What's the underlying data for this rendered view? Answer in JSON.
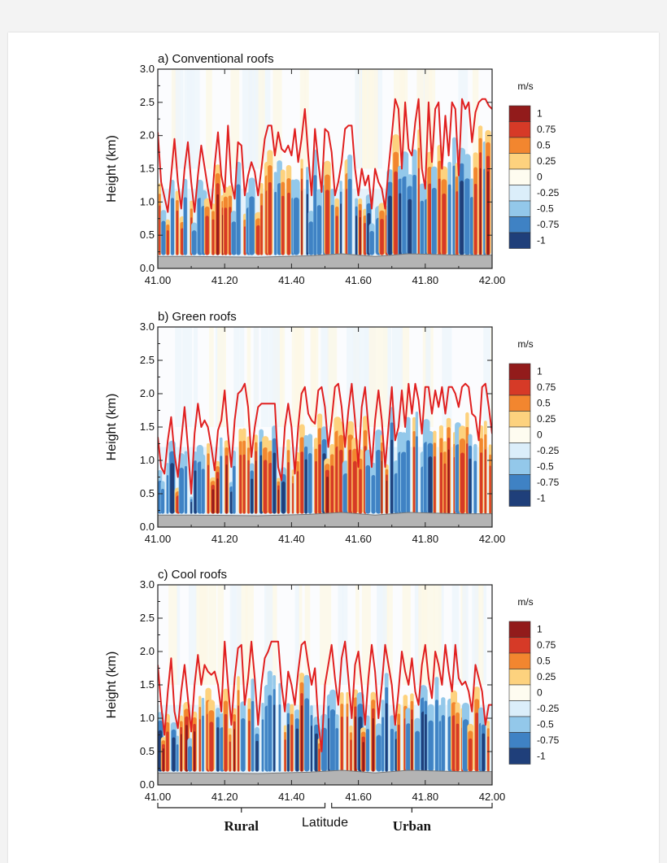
{
  "chart_data": [
    {
      "type": "heatmap",
      "title": "a) Conventional roofs",
      "ylabel": "Height (km)",
      "xlabel": "",
      "xlim": [
        41.0,
        42.0
      ],
      "ylim": [
        0.0,
        3.0
      ],
      "xticks": [
        "41.00",
        "41.20",
        "41.40",
        "41.60",
        "41.80",
        "42.00"
      ],
      "yticks": [
        "0.0",
        "0.5",
        "1.0",
        "1.5",
        "2.0",
        "2.5",
        "3.0"
      ],
      "colorbar": {
        "unit": "m/s",
        "labels": [
          "1",
          "0.75",
          "0.5",
          "0.25",
          "0",
          "-0.25",
          "-0.5",
          "-0.75",
          "-1"
        ]
      },
      "line": {
        "x": [
          41.0,
          41.01,
          41.03,
          41.04,
          41.05,
          41.06,
          41.07,
          41.08,
          41.09,
          41.1,
          41.11,
          41.12,
          41.13,
          41.15,
          41.16,
          41.17,
          41.18,
          41.19,
          41.2,
          41.21,
          41.22,
          41.23,
          41.24,
          41.25,
          41.26,
          41.27,
          41.28,
          41.29,
          41.3,
          41.31,
          41.32,
          41.33,
          41.34,
          41.35,
          41.36,
          41.37,
          41.38,
          41.39,
          41.4,
          41.41,
          41.42,
          41.43,
          41.44,
          41.45,
          41.46,
          41.47,
          41.48,
          41.49,
          41.5,
          41.51,
          41.52,
          41.53,
          41.54,
          41.55,
          41.56,
          41.57,
          41.58,
          41.59,
          41.6,
          41.61,
          41.62,
          41.63,
          41.64,
          41.65,
          41.66,
          41.67,
          41.68,
          41.69,
          41.7,
          41.71,
          41.72,
          41.73,
          41.74,
          41.75,
          41.76,
          41.77,
          41.78,
          41.79,
          41.8,
          41.81,
          41.82,
          41.83,
          41.84,
          41.85,
          41.86,
          41.87,
          41.88,
          41.89,
          41.9,
          41.91,
          41.92,
          41.93,
          41.94,
          41.95,
          41.96,
          41.97,
          41.98,
          41.99,
          42.0
        ],
        "y": [
          2.05,
          1.3,
          0.85,
          1.4,
          1.95,
          1.3,
          0.9,
          1.5,
          1.9,
          1.3,
          0.85,
          1.4,
          1.85,
          1.2,
          0.9,
          1.55,
          2.05,
          1.4,
          1.15,
          2.15,
          1.3,
          1.05,
          1.9,
          1.85,
          1.1,
          1.4,
          1.6,
          1.45,
          1.1,
          1.5,
          1.95,
          2.15,
          2.15,
          1.7,
          2.05,
          1.8,
          1.75,
          1.85,
          1.7,
          2.1,
          1.6,
          1.95,
          2.4,
          1.7,
          1.1,
          2.1,
          1.6,
          1.15,
          2.1,
          2.05,
          1.75,
          1.1,
          1.3,
          1.6,
          2.1,
          2.15,
          2.15,
          1.5,
          1.1,
          1.5,
          1.25,
          1.4,
          0.9,
          1.5,
          1.3,
          1.2,
          0.9,
          1.5,
          2.0,
          2.55,
          2.4,
          1.5,
          2.5,
          1.8,
          1.7,
          2.2,
          2.55,
          1.5,
          1.2,
          2.5,
          1.6,
          2.4,
          2.5,
          1.5,
          2.3,
          1.7,
          2.5,
          2.4,
          1.4,
          2.55,
          2.4,
          2.5,
          1.9,
          2.35,
          2.5,
          2.55,
          2.55,
          2.45,
          2.4
        ]
      }
    },
    {
      "type": "heatmap",
      "title": "b) Green roofs",
      "ylabel": "Height (km)",
      "xlabel": "",
      "xlim": [
        41.0,
        42.0
      ],
      "ylim": [
        0.0,
        3.0
      ],
      "xticks": [
        "41.00",
        "41.20",
        "41.40",
        "41.60",
        "41.80",
        "42.00"
      ],
      "yticks": [
        "0.0",
        "0.5",
        "1.0",
        "1.5",
        "2.0",
        "2.5",
        "3.0"
      ],
      "colorbar": {
        "unit": "m/s",
        "labels": [
          "1",
          "0.75",
          "0.5",
          "0.25",
          "0",
          "-0.25",
          "-0.5",
          "-0.75",
          "-1"
        ]
      },
      "line": {
        "x": [
          41.0,
          41.01,
          41.02,
          41.03,
          41.04,
          41.05,
          41.06,
          41.07,
          41.08,
          41.09,
          41.1,
          41.11,
          41.12,
          41.13,
          41.14,
          41.15,
          41.16,
          41.17,
          41.18,
          41.19,
          41.2,
          41.21,
          41.22,
          41.23,
          41.24,
          41.25,
          41.26,
          41.27,
          41.28,
          41.29,
          41.3,
          41.31,
          41.32,
          41.33,
          41.34,
          41.35,
          41.36,
          41.37,
          41.38,
          41.39,
          41.4,
          41.41,
          41.42,
          41.43,
          41.44,
          41.45,
          41.46,
          41.47,
          41.48,
          41.49,
          41.5,
          41.51,
          41.52,
          41.53,
          41.54,
          41.55,
          41.56,
          41.57,
          41.58,
          41.59,
          41.6,
          41.61,
          41.62,
          41.63,
          41.64,
          41.65,
          41.66,
          41.67,
          41.68,
          41.69,
          41.7,
          41.71,
          41.72,
          41.73,
          41.74,
          41.75,
          41.76,
          41.77,
          41.78,
          41.79,
          41.8,
          41.81,
          41.82,
          41.83,
          41.84,
          41.85,
          41.86,
          41.87,
          41.88,
          41.89,
          41.9,
          41.91,
          41.92,
          41.93,
          41.94,
          41.95,
          41.96,
          41.97,
          41.98,
          41.99,
          42.0
        ],
        "y": [
          1.35,
          0.9,
          0.8,
          1.3,
          1.65,
          1.1,
          0.75,
          1.3,
          1.8,
          1.2,
          0.5,
          1.4,
          1.85,
          1.5,
          1.6,
          1.5,
          1.2,
          0.85,
          1.45,
          1.6,
          2.05,
          1.4,
          0.9,
          1.6,
          2.0,
          2.05,
          2.15,
          1.8,
          1.05,
          1.5,
          1.8,
          1.85,
          1.85,
          1.85,
          1.85,
          1.85,
          0.9,
          0.7,
          1.5,
          1.85,
          1.5,
          0.8,
          1.5,
          2.0,
          2.1,
          1.7,
          1.6,
          1.55,
          2.05,
          2.1,
          1.8,
          1.2,
          1.6,
          2.1,
          2.15,
          1.8,
          1.2,
          1.75,
          2.15,
          1.6,
          0.9,
          1.8,
          2.1,
          1.5,
          0.9,
          1.6,
          2.05,
          1.6,
          0.9,
          1.5,
          2.1,
          1.3,
          1.5,
          2.05,
          1.5,
          2.15,
          1.7,
          2.15,
          1.9,
          1.4,
          2.1,
          2.1,
          1.7,
          2.05,
          1.8,
          2.1,
          1.7,
          2.1,
          2.1,
          2.0,
          1.8,
          2.1,
          2.15,
          2.1,
          1.7,
          1.65,
          1.3,
          2.1,
          2.15,
          1.8,
          1.4
        ]
      }
    },
    {
      "type": "heatmap",
      "title": "c) Cool roofs",
      "ylabel": "Height (km)",
      "xlabel": "Latitude",
      "xlim": [
        41.0,
        42.0
      ],
      "ylim": [
        0.0,
        3.0
      ],
      "xticks": [
        "41.00",
        "41.20",
        "41.40",
        "41.60",
        "41.80",
        "42.00"
      ],
      "yticks": [
        "0.0",
        "0.5",
        "1.0",
        "1.5",
        "2.0",
        "2.5",
        "3.0"
      ],
      "colorbar": {
        "unit": "m/s",
        "labels": [
          "1",
          "0.75",
          "0.5",
          "0.25",
          "0",
          "-0.25",
          "-0.5",
          "-0.75",
          "-1"
        ]
      },
      "regions": [
        {
          "label": "Rural",
          "from": 41.0,
          "to": 41.5
        },
        {
          "label": "Urban",
          "from": 41.52,
          "to": 42.0
        }
      ],
      "line": {
        "x": [
          41.0,
          41.01,
          41.02,
          41.03,
          41.04,
          41.05,
          41.06,
          41.07,
          41.08,
          41.09,
          41.1,
          41.11,
          41.12,
          41.13,
          41.14,
          41.15,
          41.16,
          41.17,
          41.18,
          41.19,
          41.2,
          41.21,
          41.22,
          41.23,
          41.24,
          41.25,
          41.26,
          41.27,
          41.28,
          41.29,
          41.3,
          41.31,
          41.32,
          41.33,
          41.34,
          41.35,
          41.36,
          41.37,
          41.38,
          41.39,
          41.4,
          41.41,
          41.42,
          41.43,
          41.44,
          41.45,
          41.46,
          41.47,
          41.48,
          41.49,
          41.5,
          41.51,
          41.52,
          41.53,
          41.54,
          41.55,
          41.56,
          41.57,
          41.58,
          41.59,
          41.6,
          41.61,
          41.62,
          41.63,
          41.64,
          41.65,
          41.66,
          41.67,
          41.68,
          41.69,
          41.7,
          41.71,
          41.72,
          41.73,
          41.74,
          41.75,
          41.76,
          41.77,
          41.78,
          41.79,
          41.8,
          41.81,
          41.82,
          41.83,
          41.84,
          41.85,
          41.86,
          41.87,
          41.88,
          41.89,
          41.9,
          41.91,
          41.92,
          41.93,
          41.94,
          41.95,
          41.96,
          41.97,
          41.98,
          41.99,
          42.0
        ],
        "y": [
          1.8,
          1.2,
          0.75,
          1.4,
          1.9,
          1.1,
          0.85,
          1.4,
          1.8,
          1.3,
          0.8,
          1.5,
          1.95,
          1.5,
          1.8,
          1.7,
          1.65,
          1.7,
          1.5,
          1.1,
          2.15,
          1.5,
          0.9,
          1.6,
          2.05,
          2.1,
          1.2,
          1.6,
          2.15,
          1.6,
          0.9,
          1.5,
          1.9,
          2.0,
          2.15,
          2.15,
          2.15,
          1.5,
          1.1,
          1.7,
          1.5,
          1.2,
          1.7,
          2.1,
          2.15,
          1.8,
          1.5,
          1.75,
          0.95,
          0.5,
          1.5,
          1.8,
          2.1,
          1.6,
          1.2,
          1.9,
          2.15,
          1.6,
          1.0,
          1.8,
          2.0,
          1.5,
          0.9,
          1.6,
          2.1,
          1.7,
          1.0,
          1.5,
          2.1,
          1.8,
          1.5,
          0.9,
          1.4,
          2.0,
          1.7,
          1.5,
          1.9,
          1.4,
          1.2,
          1.8,
          2.1,
          1.6,
          1.3,
          2.0,
          1.8,
          1.5,
          2.1,
          1.7,
          1.4,
          2.1,
          1.6,
          1.5,
          1.55,
          1.4,
          1.1,
          1.8,
          1.6,
          1.4,
          0.9,
          1.2,
          1.2
        ]
      }
    }
  ]
}
